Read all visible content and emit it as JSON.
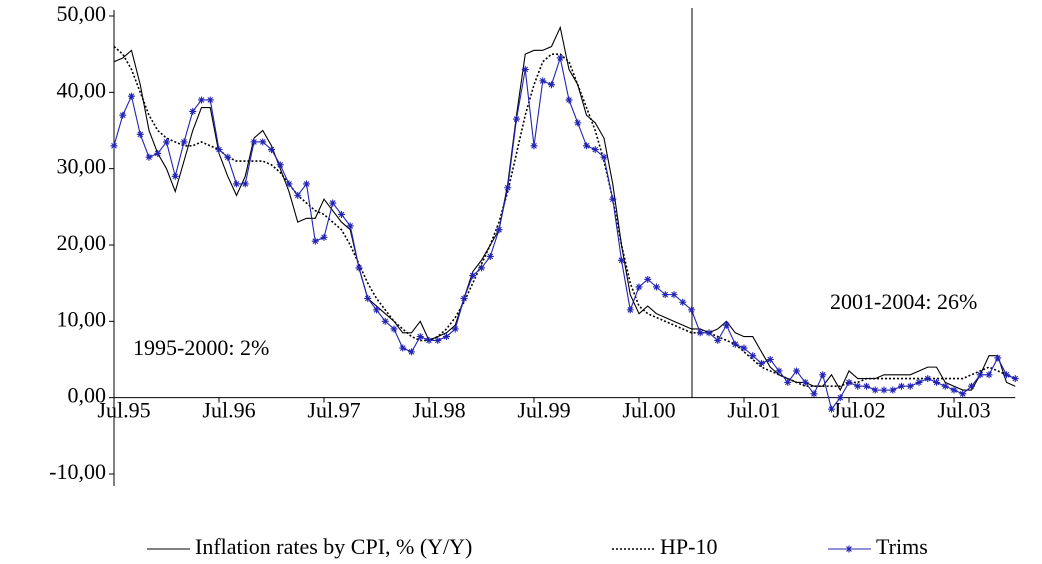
{
  "chart_data": {
    "type": "line",
    "annotations": [
      "1995-2000: 2%",
      "2001-2004: 26%"
    ],
    "categories": [
      "Jul.95",
      null,
      null,
      null,
      null,
      null,
      null,
      null,
      null,
      null,
      null,
      null,
      "Jul.96",
      null,
      null,
      null,
      null,
      null,
      null,
      null,
      null,
      null,
      null,
      null,
      "Jul.97",
      null,
      null,
      null,
      null,
      null,
      null,
      null,
      null,
      null,
      null,
      null,
      "Jul.98",
      null,
      null,
      null,
      null,
      null,
      null,
      null,
      null,
      null,
      null,
      null,
      "Jul.99",
      null,
      null,
      null,
      null,
      null,
      null,
      null,
      null,
      null,
      null,
      null,
      "Jul.00",
      null,
      null,
      null,
      null,
      null,
      null,
      null,
      null,
      null,
      null,
      null,
      "Jul.01",
      null,
      null,
      null,
      null,
      null,
      null,
      null,
      null,
      null,
      null,
      null,
      "Jul.02",
      null,
      null,
      null,
      null,
      null,
      null,
      null,
      null,
      null,
      null,
      null,
      "Jul.03",
      null,
      null,
      null,
      null,
      null,
      null,
      null
    ],
    "series": [
      {
        "name": "Inflation rates by CPI, % (Y/Y)",
        "color": "#000000",
        "style": "solid",
        "values": [
          44,
          44.5,
          45.5,
          41,
          35,
          32,
          30,
          27,
          31,
          35,
          38,
          38,
          32,
          29,
          26.5,
          29,
          34,
          35,
          33,
          30,
          27,
          23,
          23.5,
          23.5,
          26,
          24.5,
          23,
          22,
          17,
          13,
          12,
          11,
          10,
          8.5,
          8.5,
          10,
          7.5,
          8,
          8.5,
          9.5,
          13,
          16.5,
          18,
          20,
          22,
          28,
          37,
          45,
          45.5,
          45.5,
          46,
          48.5,
          43,
          41,
          37,
          36,
          34,
          28,
          20,
          13.5,
          11,
          12,
          11,
          10.5,
          10,
          9.5,
          9,
          9,
          8.5,
          9,
          10,
          8.5,
          8,
          8,
          6,
          4,
          3,
          2.5,
          2,
          2,
          1.5,
          1.5,
          3,
          1,
          3.5,
          2.5,
          2.5,
          2.5,
          3,
          3,
          3,
          3,
          3.5,
          4,
          4,
          2,
          1.5,
          1,
          1,
          3,
          5.5,
          5.5,
          2,
          1.5
        ]
      },
      {
        "name": "HP-10",
        "color": "#000000",
        "style": "dotted",
        "values": [
          46,
          45,
          43,
          40,
          37,
          35,
          34,
          33.5,
          33,
          33,
          33.5,
          33,
          32.5,
          31.5,
          31,
          31,
          31,
          31,
          30.5,
          29.5,
          28,
          26.5,
          25.5,
          24.5,
          24,
          23,
          22,
          20,
          17.5,
          15,
          13,
          11.5,
          10,
          9,
          8,
          7.5,
          7.5,
          8,
          9,
          10.5,
          12.5,
          15,
          17.5,
          20,
          23,
          27,
          32,
          37,
          41,
          44,
          45,
          45,
          44,
          41,
          38,
          35,
          31,
          26,
          20,
          15,
          12,
          11,
          10.5,
          10,
          9.5,
          9,
          8.5,
          8.5,
          8.5,
          8,
          7.5,
          7,
          6,
          5,
          4,
          3.5,
          3,
          2.5,
          2,
          1.5,
          1.5,
          1.5,
          1.5,
          1.5,
          2,
          2,
          2.5,
          2.5,
          2.5,
          2.5,
          2.5,
          2.5,
          2.5,
          2.5,
          2.5,
          2.5,
          2.5,
          2.5,
          3,
          3.5,
          4,
          3.5,
          3,
          2.5
        ]
      },
      {
        "name": "Trims",
        "color": "#2323b4",
        "style": "solid",
        "marker": "star",
        "values": [
          33,
          37,
          39.5,
          34.5,
          31.5,
          32,
          33.5,
          29,
          33.5,
          37.5,
          39,
          39,
          32.5,
          31.5,
          28,
          28,
          33.5,
          33.5,
          32.5,
          30.5,
          28,
          26.5,
          28,
          20.5,
          21,
          25.5,
          24,
          22.5,
          17,
          13,
          11.5,
          10,
          9,
          6.5,
          6,
          8,
          7.5,
          7.5,
          8,
          9,
          13,
          16,
          17,
          18.5,
          22,
          27.5,
          36.5,
          43,
          33,
          41.5,
          41,
          44.5,
          39,
          36,
          33,
          32.5,
          31.5,
          26,
          18,
          11.5,
          14.5,
          15.5,
          14.5,
          13.5,
          13.5,
          12.5,
          11.5,
          8.5,
          8.5,
          7.5,
          9.5,
          7,
          6.5,
          5.5,
          4.5,
          5,
          3.5,
          2,
          3.5,
          2,
          0.5,
          3,
          -1.5,
          0,
          2,
          1.5,
          1.5,
          1,
          1,
          1,
          1.5,
          1.5,
          2,
          2.5,
          2,
          1.5,
          1,
          0.5,
          1.5,
          3,
          3,
          5.2,
          3,
          2.5
        ]
      }
    ],
    "ylim": [
      -10,
      50
    ],
    "yticks": [
      {
        "value": -10,
        "label": "-10,00"
      },
      {
        "value": 0,
        "label": "0,00"
      },
      {
        "value": 10,
        "label": "10,00"
      },
      {
        "value": 20,
        "label": "20,00"
      },
      {
        "value": 30,
        "label": "30,00"
      },
      {
        "value": 40,
        "label": "40,00"
      },
      {
        "value": 50,
        "label": "50,00"
      }
    ],
    "grid": false
  }
}
